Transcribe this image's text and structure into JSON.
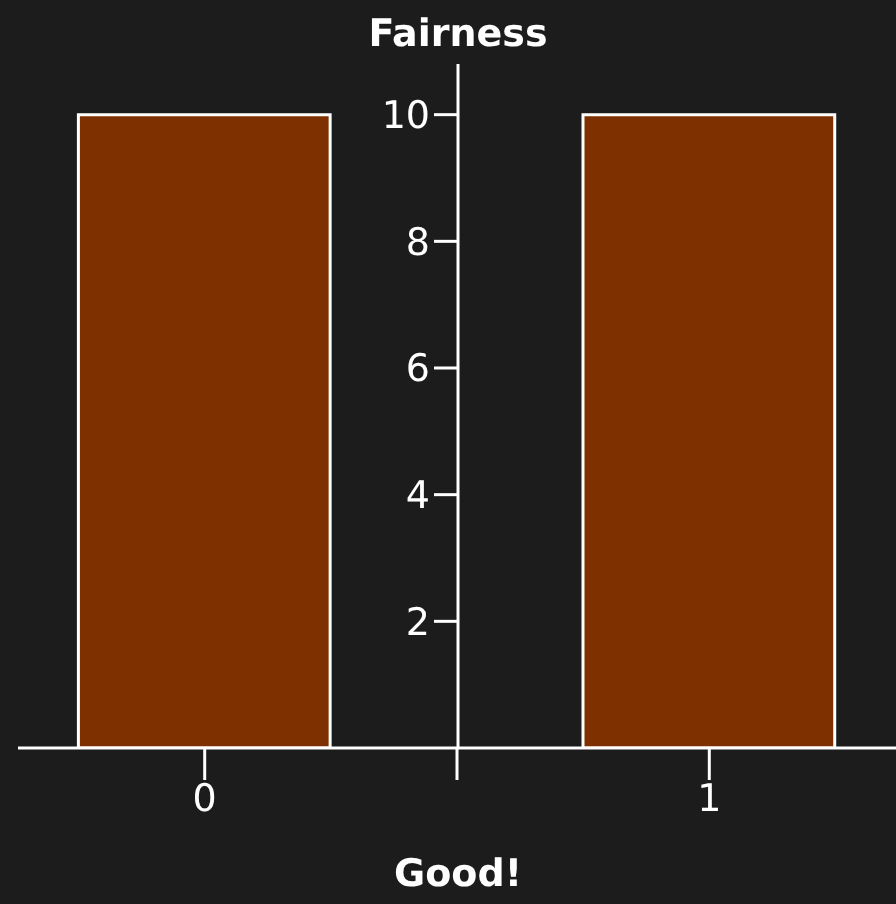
{
  "chart_data": {
    "type": "bar",
    "xlabel": "Good!",
    "ylabel": "Fairness",
    "x": [
      0,
      1
    ],
    "values": [
      10,
      10
    ],
    "color": "#7f3000",
    "xlim": [
      -0.37,
      1.37
    ],
    "xticks": [
      0,
      {
        "value": 0.5,
        "label": null
      },
      1
    ],
    "ylim": [
      0,
      10.8
    ],
    "yticks": [
      2,
      4,
      6,
      8,
      10
    ],
    "grid": false,
    "legend": false
  }
}
